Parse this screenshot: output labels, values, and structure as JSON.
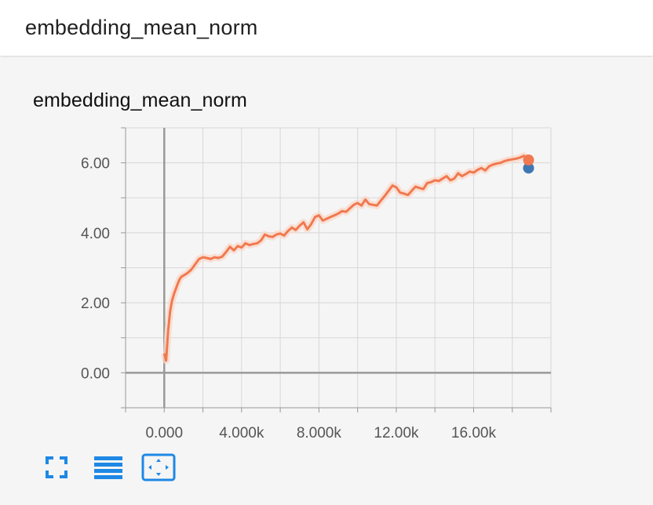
{
  "header": {
    "title": "embedding_mean_norm"
  },
  "card": {
    "title": "embedding_mean_norm"
  },
  "toolbar": {
    "icons": [
      "fullscreen-icon",
      "list-icon",
      "fit-domain-icon"
    ]
  },
  "colors": {
    "smoothed_line": "#f0794f",
    "raw_line": "#fbd6c6",
    "point_primary": "#f0794f",
    "point_secondary": "#3f77b4",
    "grid": "#d8d8d8",
    "axis": "#999999",
    "icon": "#1e88e5"
  },
  "chart_data": {
    "type": "line",
    "title": "",
    "xlabel": "",
    "ylabel": "",
    "xlim": [
      -2000,
      20000
    ],
    "ylim": [
      -1.0,
      7.0
    ],
    "x_ticks": [
      "0.000",
      "4.000k",
      "8.000k",
      "12.00k",
      "16.00k"
    ],
    "x_tick_values": [
      0,
      4000,
      8000,
      12000,
      16000
    ],
    "y_ticks": [
      "0.00",
      "2.00",
      "4.00",
      "6.00"
    ],
    "y_tick_values": [
      0,
      2,
      4,
      6
    ],
    "grid": true,
    "series": [
      {
        "style": "smoothed",
        "x": [
          0,
          100,
          200,
          300,
          400,
          500,
          600,
          700,
          800,
          900,
          1000,
          1200,
          1400,
          1600,
          1800,
          2000,
          2200,
          2400,
          2600,
          2800,
          3000,
          3200,
          3400,
          3600,
          3800,
          4000,
          4200,
          4400,
          4600,
          4800,
          5000,
          5200,
          5400,
          5600,
          5800,
          6000,
          6200,
          6400,
          6600,
          6800,
          7000,
          7200,
          7400,
          7600,
          7800,
          8000,
          8200,
          8400,
          8600,
          8800,
          9000,
          9200,
          9400,
          9600,
          9800,
          10000,
          10200,
          10400,
          10600,
          10800,
          11000,
          11200,
          11400,
          11600,
          11800,
          12000,
          12200,
          12400,
          12600,
          12800,
          13000,
          13200,
          13400,
          13600,
          13800,
          14000,
          14200,
          14400,
          14600,
          14800,
          15000,
          15200,
          15400,
          15600,
          15800,
          16000,
          16200,
          16400,
          16600,
          16800,
          17000,
          17200,
          17400,
          17600,
          17800,
          18000,
          18200,
          18400,
          18600,
          18800
        ],
        "values": [
          0.55,
          0.35,
          1.2,
          1.75,
          2.05,
          2.25,
          2.4,
          2.55,
          2.68,
          2.75,
          2.78,
          2.85,
          2.95,
          3.1,
          3.25,
          3.3,
          3.28,
          3.25,
          3.3,
          3.28,
          3.32,
          3.45,
          3.6,
          3.5,
          3.62,
          3.58,
          3.7,
          3.65,
          3.68,
          3.7,
          3.78,
          3.95,
          3.9,
          3.88,
          3.95,
          3.98,
          3.92,
          4.05,
          4.15,
          4.08,
          4.2,
          4.3,
          4.1,
          4.25,
          4.45,
          4.5,
          4.35,
          4.4,
          4.45,
          4.5,
          4.55,
          4.62,
          4.6,
          4.7,
          4.8,
          4.85,
          4.78,
          4.95,
          4.82,
          4.8,
          4.78,
          4.92,
          5.05,
          5.2,
          5.35,
          5.3,
          5.15,
          5.12,
          5.08,
          5.2,
          5.32,
          5.28,
          5.25,
          5.42,
          5.45,
          5.5,
          5.48,
          5.55,
          5.62,
          5.5,
          5.55,
          5.7,
          5.62,
          5.68,
          5.75,
          5.72,
          5.8,
          5.85,
          5.78,
          5.9,
          5.95,
          5.98,
          6.0,
          6.05,
          6.08,
          6.1,
          6.12,
          6.15,
          6.2,
          6.08
        ]
      },
      {
        "style": "last-point-raw",
        "x": [
          18800
        ],
        "values": [
          5.85
        ]
      }
    ]
  }
}
